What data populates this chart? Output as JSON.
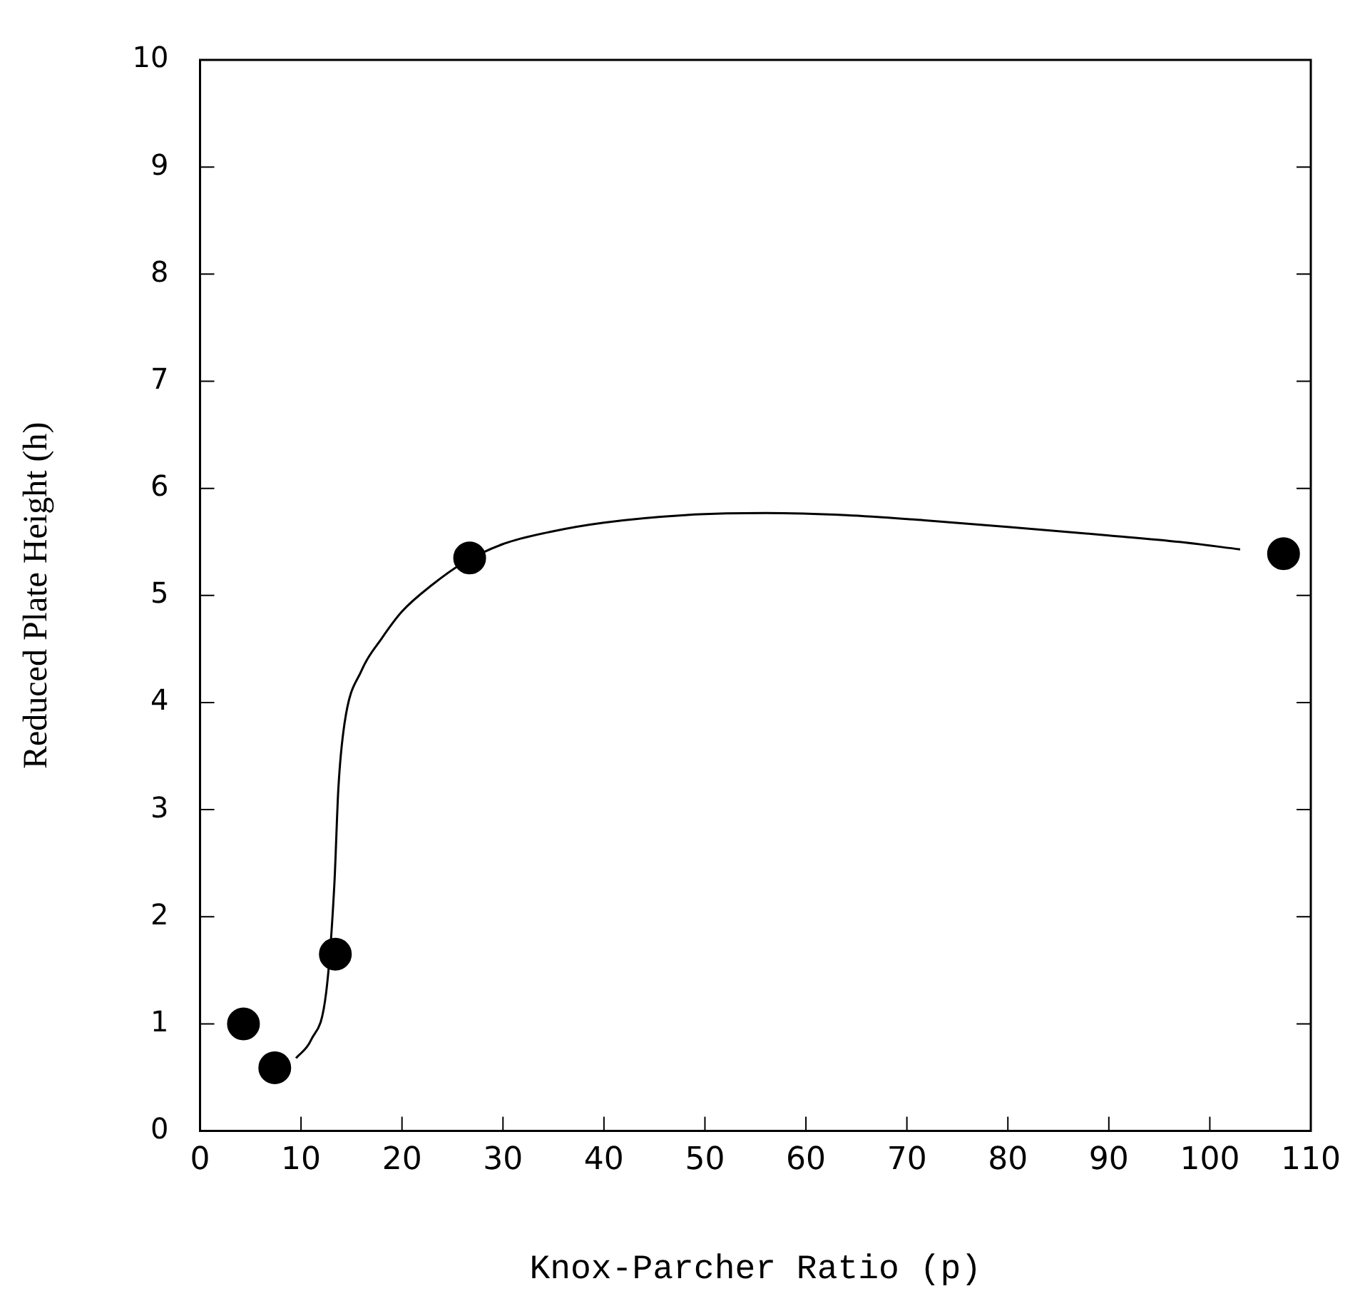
{
  "chart_data": {
    "type": "scatter",
    "xlabel": "Knox-Parcher Ratio (p)",
    "ylabel": "Reduced Plate Height (h)",
    "xlim": [
      0,
      110
    ],
    "xticks": [
      0,
      10,
      20,
      30,
      40,
      50,
      60,
      70,
      80,
      90,
      100,
      110
    ],
    "ylim": [
      0,
      10
    ],
    "yticks": [
      0,
      1,
      2,
      3,
      4,
      5,
      6,
      7,
      8,
      9,
      10
    ],
    "grid": false,
    "legend": false,
    "marker": "circle",
    "series": [
      {
        "color": "#000000",
        "x": [
          4.3,
          7.4,
          13.4,
          26.7,
          107.3
        ],
        "values": [
          1.0,
          0.59,
          1.65,
          5.35,
          5.39
        ]
      },
      {
        "type": "line",
        "color": "#000000",
        "marker": "none",
        "x": [
          9.5,
          11,
          12.5,
          13.3,
          13.7,
          14.3,
          16,
          18,
          20,
          23,
          26,
          30,
          35,
          40,
          48,
          56,
          64,
          72,
          80,
          90,
          97,
          103
        ],
        "values": [
          0.68,
          0.85,
          1.3,
          2.3,
          3.2,
          3.8,
          4.3,
          4.6,
          4.85,
          5.1,
          5.3,
          5.48,
          5.6,
          5.68,
          5.75,
          5.77,
          5.75,
          5.7,
          5.64,
          5.56,
          5.5,
          5.43
        ]
      }
    ]
  }
}
